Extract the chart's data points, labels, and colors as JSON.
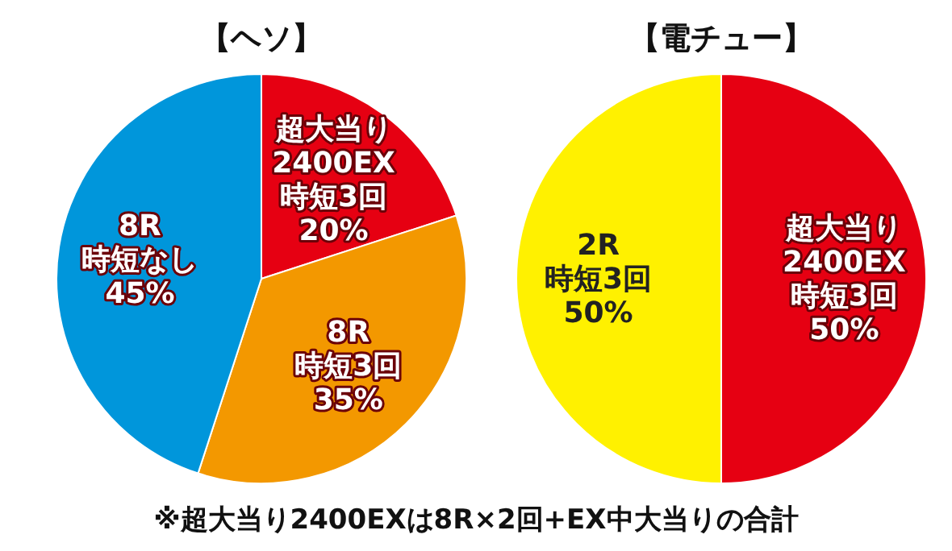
{
  "chart_data": [
    {
      "type": "pie",
      "title": "【ヘソ】",
      "categories": [
        "超大当り\n2400EX\n時短3回",
        "8R\n時短3回",
        "8R\n時短なし"
      ],
      "values": [
        20,
        35,
        45
      ],
      "value_labels": [
        "20%",
        "35%",
        "45%"
      ],
      "colors": [
        "#e60012",
        "#f39800",
        "#0096db"
      ],
      "annotations": [
        "※超大当り2400EXは8R×2回+EX中大当りの合計"
      ]
    },
    {
      "type": "pie",
      "title": "【電チュー】",
      "categories": [
        "超大当り\n2400EX\n時短3回",
        "2R\n時短3回"
      ],
      "values": [
        50,
        50
      ],
      "value_labels": [
        "50%",
        "50%"
      ],
      "colors": [
        "#e60012",
        "#fff100"
      ]
    }
  ]
}
